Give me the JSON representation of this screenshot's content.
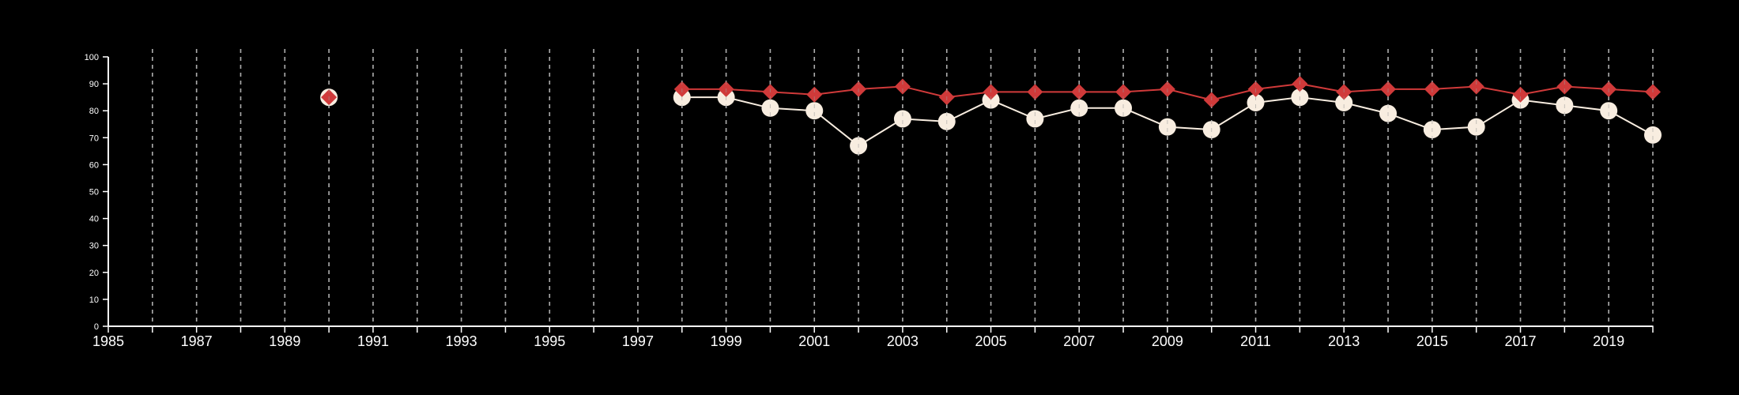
{
  "chart_data": {
    "type": "line",
    "title": "",
    "xlabel": "",
    "ylabel": "",
    "xlim": [
      1985,
      2020
    ],
    "ylim": [
      0,
      100
    ],
    "x_ticks": [
      1985,
      1987,
      1989,
      1991,
      1993,
      1995,
      1997,
      1999,
      2001,
      2003,
      2005,
      2007,
      2009,
      2011,
      2013,
      2015,
      2017,
      2019
    ],
    "x_tick_labels": [
      "1985",
      "1987",
      "1989",
      "1991",
      "1993",
      "1995",
      "1997",
      "1999",
      "2001",
      "2003",
      "2005",
      "2007",
      "2009",
      "2011",
      "2013",
      "2015",
      "2017",
      "2019"
    ],
    "y_ticks": [
      0,
      10,
      20,
      30,
      40,
      50,
      60,
      70,
      80,
      90,
      100
    ],
    "y_tick_labels": [
      "0",
      "10",
      "20",
      "30",
      "40",
      "50",
      "60",
      "70",
      "80",
      "90",
      "100"
    ],
    "grid": "vertical dashed lines at each year",
    "legend": "none",
    "series": [
      {
        "marker": "circle",
        "color": "#f8ede0",
        "points": [
          [
            1990,
            85
          ],
          [
            1998,
            85
          ],
          [
            1999,
            85
          ],
          [
            2000,
            81
          ],
          [
            2001,
            80
          ],
          [
            2002,
            67
          ],
          [
            2003,
            77
          ],
          [
            2004,
            76
          ],
          [
            2005,
            84
          ],
          [
            2006,
            77
          ],
          [
            2007,
            81
          ],
          [
            2008,
            81
          ],
          [
            2009,
            74
          ],
          [
            2010,
            73
          ],
          [
            2011,
            83
          ],
          [
            2012,
            85
          ],
          [
            2013,
            83
          ],
          [
            2014,
            79
          ],
          [
            2015,
            73
          ],
          [
            2016,
            74
          ],
          [
            2017,
            84
          ],
          [
            2018,
            82
          ],
          [
            2019,
            80
          ],
          [
            2020,
            71
          ]
        ]
      },
      {
        "marker": "diamond",
        "color": "#d03a3a",
        "points": [
          [
            1990,
            85
          ],
          [
            1998,
            88
          ],
          [
            1999,
            88
          ],
          [
            2000,
            87
          ],
          [
            2001,
            86
          ],
          [
            2002,
            88
          ],
          [
            2003,
            89
          ],
          [
            2004,
            85
          ],
          [
            2005,
            87
          ],
          [
            2006,
            87
          ],
          [
            2007,
            87
          ],
          [
            2008,
            87
          ],
          [
            2009,
            88
          ],
          [
            2010,
            84
          ],
          [
            2011,
            88
          ],
          [
            2012,
            90
          ],
          [
            2013,
            87
          ],
          [
            2014,
            88
          ],
          [
            2015,
            88
          ],
          [
            2016,
            89
          ],
          [
            2017,
            86
          ],
          [
            2018,
            89
          ],
          [
            2019,
            88
          ],
          [
            2020,
            87
          ]
        ]
      }
    ]
  }
}
